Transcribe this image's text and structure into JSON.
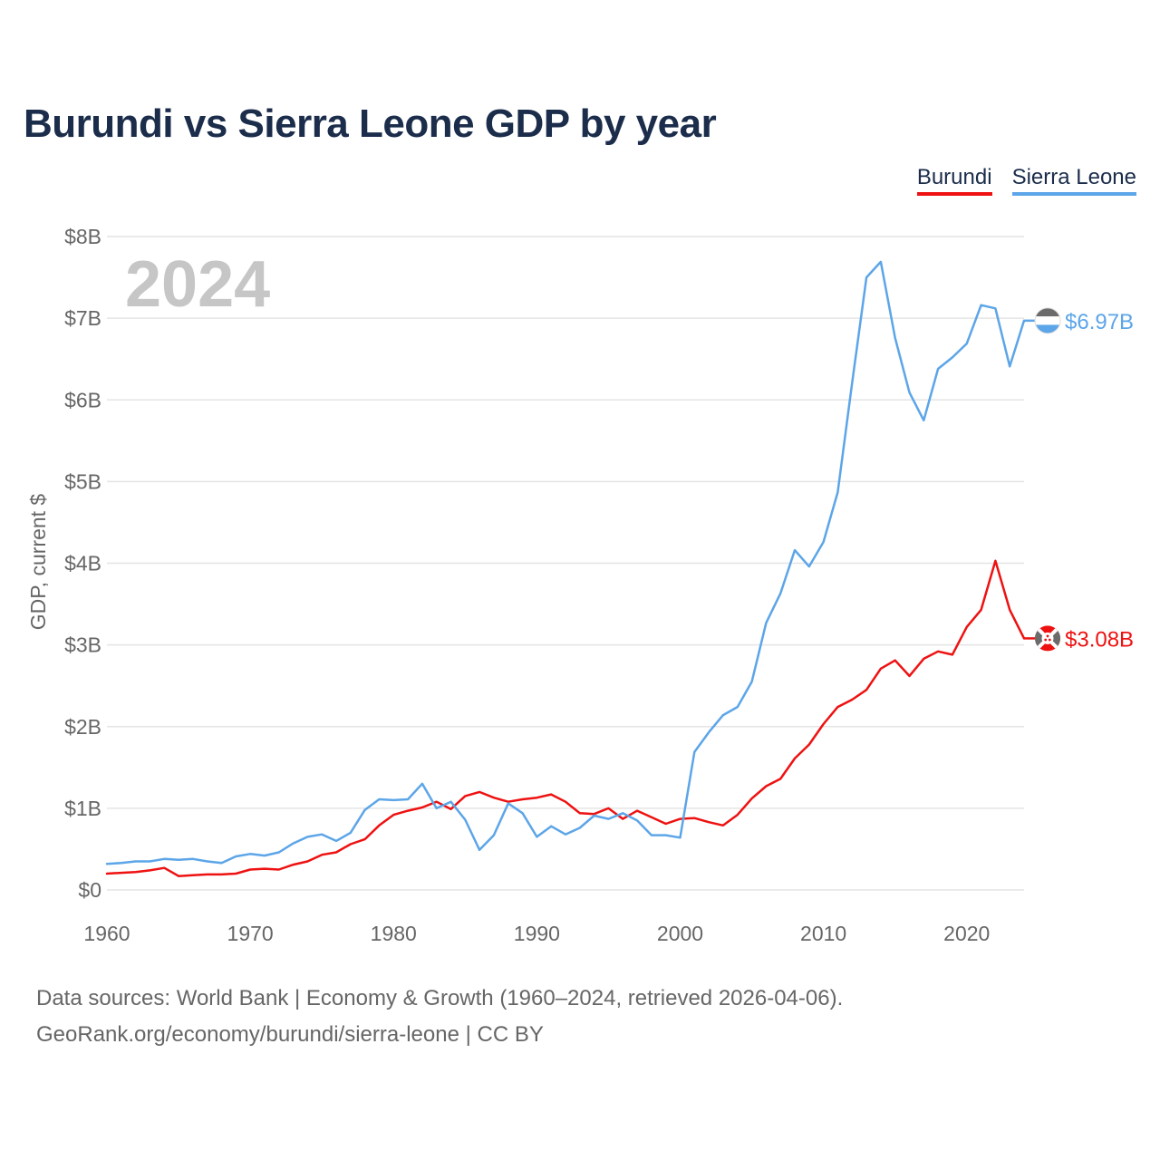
{
  "title": "Burundi vs Sierra Leone GDP by year",
  "legend": {
    "burundi": "Burundi",
    "sierra_leone": "Sierra Leone"
  },
  "year_watermark": "2024",
  "footer": {
    "source": "Data sources: World Bank | Economy & Growth (1960–2024, retrieved 2026-04-06).",
    "link": "GeoRank.org/economy/burundi/sierra-leone",
    "separator": " | ",
    "license": "CC BY"
  },
  "colors": {
    "burundi": "#ee1111",
    "sierra_leone": "#5ca5e8",
    "grid": "#e4e4e4",
    "axis_text": "#666666"
  },
  "chart_data": {
    "type": "line",
    "title": "Burundi vs Sierra Leone GDP by year",
    "xlabel": "",
    "ylabel": "GDP, current $",
    "xlim": [
      1960,
      2024
    ],
    "ylim": [
      0,
      8
    ],
    "y_unit": "billion USD",
    "x_ticks": [
      1960,
      1970,
      1980,
      1990,
      2000,
      2010,
      2020
    ],
    "y_ticks": [
      {
        "value": 0,
        "label": "$0"
      },
      {
        "value": 1,
        "label": "$1B"
      },
      {
        "value": 2,
        "label": "$2B"
      },
      {
        "value": 3,
        "label": "$3B"
      },
      {
        "value": 4,
        "label": "$4B"
      },
      {
        "value": 5,
        "label": "$5B"
      },
      {
        "value": 6,
        "label": "$6B"
      },
      {
        "value": 7,
        "label": "$7B"
      },
      {
        "value": 8,
        "label": "$8B"
      }
    ],
    "x": [
      1960,
      1961,
      1962,
      1963,
      1964,
      1965,
      1966,
      1967,
      1968,
      1969,
      1970,
      1971,
      1972,
      1973,
      1974,
      1975,
      1976,
      1977,
      1978,
      1979,
      1980,
      1981,
      1982,
      1983,
      1984,
      1985,
      1986,
      1987,
      1988,
      1989,
      1990,
      1991,
      1992,
      1993,
      1994,
      1995,
      1996,
      1997,
      1998,
      1999,
      2000,
      2001,
      2002,
      2003,
      2004,
      2005,
      2006,
      2007,
      2008,
      2009,
      2010,
      2011,
      2012,
      2013,
      2014,
      2015,
      2016,
      2017,
      2018,
      2019,
      2020,
      2021,
      2022,
      2023,
      2024
    ],
    "series": [
      {
        "name": "Burundi",
        "color": "#ee1111",
        "end_label": "$3.08B",
        "values": [
          0.2,
          0.21,
          0.22,
          0.24,
          0.27,
          0.17,
          0.18,
          0.19,
          0.19,
          0.2,
          0.25,
          0.26,
          0.25,
          0.31,
          0.35,
          0.43,
          0.46,
          0.56,
          0.62,
          0.79,
          0.92,
          0.97,
          1.01,
          1.08,
          0.99,
          1.15,
          1.2,
          1.13,
          1.08,
          1.11,
          1.13,
          1.17,
          1.08,
          0.94,
          0.93,
          1.0,
          0.87,
          0.97,
          0.89,
          0.81,
          0.87,
          0.88,
          0.83,
          0.79,
          0.92,
          1.12,
          1.27,
          1.36,
          1.61,
          1.78,
          2.03,
          2.24,
          2.33,
          2.45,
          2.71,
          2.81,
          2.62,
          2.83,
          2.92,
          2.88,
          3.22,
          3.43,
          4.03,
          3.43,
          3.08
        ]
      },
      {
        "name": "Sierra Leone",
        "color": "#5ca5e8",
        "end_label": "$6.97B",
        "values": [
          0.32,
          0.33,
          0.35,
          0.35,
          0.38,
          0.37,
          0.38,
          0.35,
          0.33,
          0.41,
          0.44,
          0.42,
          0.46,
          0.57,
          0.65,
          0.68,
          0.6,
          0.7,
          0.98,
          1.11,
          1.1,
          1.11,
          1.3,
          1.0,
          1.08,
          0.86,
          0.49,
          0.67,
          1.06,
          0.94,
          0.65,
          0.78,
          0.68,
          0.76,
          0.91,
          0.87,
          0.94,
          0.85,
          0.67,
          0.67,
          0.64,
          1.69,
          1.93,
          2.14,
          2.24,
          2.55,
          3.27,
          3.63,
          4.16,
          3.96,
          4.26,
          4.87,
          6.21,
          7.5,
          7.69,
          6.76,
          6.09,
          5.75,
          6.38,
          6.52,
          6.69,
          7.16,
          7.12,
          6.41,
          6.97
        ]
      }
    ]
  }
}
